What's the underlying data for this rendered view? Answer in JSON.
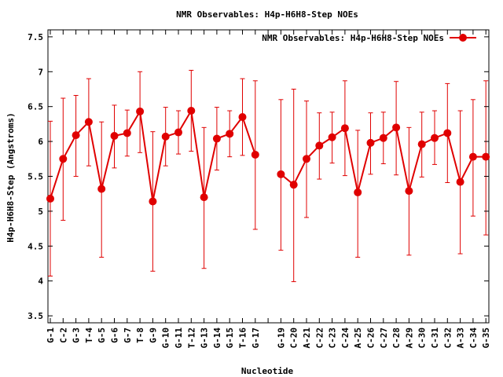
{
  "chart_data": {
    "type": "line",
    "title": "NMR Observables: H4p-H6H8-Step NOEs",
    "xlabel": "Nucleotide",
    "ylabel": "H4p-H6H8-Step (Angstroms)",
    "ylim": [
      3.4,
      7.6
    ],
    "yticks": [
      3.5,
      4,
      4.5,
      5,
      5.5,
      6,
      6.5,
      7,
      7.5
    ],
    "grid": false,
    "legend_position": "top-right",
    "categories": [
      "G-1",
      "C-2",
      "G-3",
      "T-4",
      "G-5",
      "G-6",
      "G-7",
      "T-8",
      "G-9",
      "G-10",
      "G-11",
      "T-12",
      "G-13",
      "G-14",
      "G-15",
      "T-16",
      "G-17",
      "",
      "G-19",
      "C-20",
      "A-21",
      "C-22",
      "C-23",
      "C-24",
      "A-25",
      "C-26",
      "C-27",
      "C-28",
      "A-29",
      "C-30",
      "C-31",
      "C-32",
      "A-33",
      "C-34",
      "G-35"
    ],
    "series": [
      {
        "name": "NMR Observables: H4p-H6H8-Step NOEs",
        "color": "#e00000",
        "values": [
          5.18,
          5.75,
          6.09,
          6.28,
          5.32,
          6.08,
          6.12,
          6.43,
          5.14,
          6.07,
          6.13,
          6.44,
          5.2,
          6.04,
          6.11,
          6.35,
          5.81,
          null,
          5.53,
          5.38,
          5.75,
          5.94,
          6.06,
          6.19,
          5.27,
          5.98,
          6.05,
          6.2,
          5.29,
          5.96,
          6.05,
          6.12,
          5.42,
          5.78,
          5.78
        ],
        "error_high": [
          6.29,
          6.62,
          6.66,
          6.9,
          6.28,
          6.52,
          6.45,
          7.0,
          6.14,
          6.49,
          6.44,
          7.02,
          6.2,
          6.49,
          6.44,
          6.9,
          6.87,
          null,
          6.6,
          6.75,
          6.58,
          6.41,
          6.42,
          6.87,
          6.16,
          6.41,
          6.42,
          6.86,
          6.2,
          6.42,
          6.44,
          6.83,
          6.44,
          6.6,
          6.87
        ],
        "error_low": [
          4.07,
          4.87,
          5.5,
          5.65,
          4.34,
          5.62,
          5.79,
          5.84,
          4.14,
          5.65,
          5.82,
          5.86,
          4.18,
          5.59,
          5.78,
          5.8,
          4.74,
          null,
          4.44,
          3.99,
          4.91,
          5.46,
          5.69,
          5.51,
          4.34,
          5.53,
          5.68,
          5.52,
          4.37,
          5.49,
          5.67,
          5.41,
          4.39,
          4.93,
          4.66
        ]
      }
    ]
  }
}
